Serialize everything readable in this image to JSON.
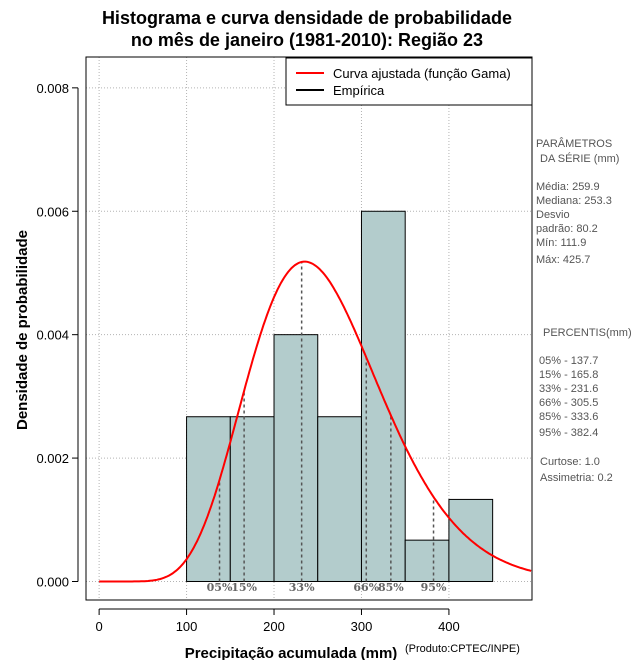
{
  "chart_data": {
    "type": "bar",
    "title_line1": "Histograma e curva densidade de probabilidade",
    "title_line2": "no mês de janeiro (1981-2010): Região 23",
    "xlabel": "Precipitação acumulada (mm)",
    "ylabel": "Densidade de probabilidade",
    "credit": "(Produto:CPTEC/INPE)",
    "xlim": [
      -15,
      495
    ],
    "ylim": [
      -0.0003,
      0.0085
    ],
    "xticks": [
      0,
      100,
      200,
      300,
      400
    ],
    "xtick_labels": [
      "0",
      "100",
      "200",
      "300",
      "400"
    ],
    "yticks": [
      0,
      0.002,
      0.004,
      0.006,
      0.008
    ],
    "ytick_labels": [
      "0.000",
      "0.002",
      "0.004",
      "0.006",
      "0.008"
    ],
    "grid": true,
    "histogram_bins": [
      {
        "start": 100,
        "end": 150,
        "density": 0.00267
      },
      {
        "start": 150,
        "end": 200,
        "density": 0.00267
      },
      {
        "start": 200,
        "end": 250,
        "density": 0.004
      },
      {
        "start": 250,
        "end": 300,
        "density": 0.00267
      },
      {
        "start": 300,
        "end": 350,
        "density": 0.006
      },
      {
        "start": 350,
        "end": 400,
        "density": 0.00067
      },
      {
        "start": 400,
        "end": 450,
        "density": 0.00133
      }
    ],
    "gamma_fit": {
      "shape": 10.5,
      "scale": 24.75,
      "x_max": 495
    },
    "percentile_markers": [
      {
        "label": "05%",
        "value": 137.7
      },
      {
        "label": "15%",
        "value": 165.8
      },
      {
        "label": "33%",
        "value": 231.6
      },
      {
        "label": "66%",
        "value": 305.5
      },
      {
        "label": "85%",
        "value": 333.6
      },
      {
        "label": "95%",
        "value": 382.4
      }
    ],
    "legend": {
      "placement": "top-right",
      "items": [
        {
          "label": "Curva ajustada (função Gama)",
          "color": "#ff0000"
        },
        {
          "label": "Empírica",
          "color": "#000000"
        }
      ]
    },
    "colors": {
      "bar_fill": "#b3cccc",
      "curve": "#ff0000",
      "grid": "#b3b3b3",
      "marker": "#555555"
    }
  },
  "parameters": {
    "title1": "PARÂMETROS",
    "title2": "DA SÉRIE (mm)",
    "lines": [
      "Média:  259.9",
      "Mediana:  253.3",
      "Desvio",
      "padrão:  80.2",
      "Mín:  111.9",
      "Máx:  425.7"
    ]
  },
  "percentis": {
    "title": "PERCENTIS(mm)",
    "lines": [
      "05% -  137.7",
      "15% -  165.8",
      "33% -  231.6",
      "66% -  305.5",
      "85% -  333.6",
      "95% -  382.4"
    ]
  },
  "stats": {
    "lines": [
      "Curtose:  1.0",
      "Assimetria:  0.2"
    ]
  }
}
